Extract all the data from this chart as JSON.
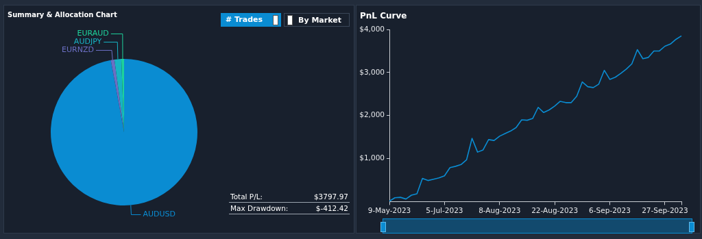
{
  "chart_data": [
    {
      "type": "pie",
      "title": "Summary & Allocation Chart",
      "categories": [
        "AUDUSD",
        "EURNZD",
        "AUDJPY",
        "EURAUD"
      ],
      "values": [
        97.1,
        0.8,
        1.5,
        0.6
      ],
      "colors": [
        "#0a8cd2",
        "#6b6fc4",
        "#17b4c4",
        "#1ed29c"
      ],
      "annotations": [
        "# Trades",
        "By Market",
        "Total P/L:",
        "$3797.97",
        "Max Drawdown:",
        "$-412.42"
      ]
    },
    {
      "type": "line",
      "title": "PnL Curve",
      "categories": [
        "9-May-2023",
        null,
        null,
        null,
        null,
        null,
        null,
        null,
        null,
        null,
        "5-Jul-2023",
        null,
        null,
        null,
        null,
        null,
        null,
        null,
        null,
        null,
        "8-Aug-2023",
        null,
        null,
        null,
        null,
        null,
        null,
        null,
        null,
        null,
        "22-Aug-2023",
        null,
        null,
        null,
        null,
        null,
        null,
        null,
        null,
        null,
        "6-Sep-2023",
        null,
        null,
        null,
        null,
        null,
        null,
        null,
        null,
        null,
        "27-Sep-2023",
        null,
        null,
        null
      ],
      "series": [
        {
          "color": "#0a8cd2",
          "values": [
            10,
            90,
            100,
            60,
            150,
            180,
            540,
            490,
            520,
            550,
            600,
            790,
            820,
            860,
            970,
            1470,
            1150,
            1200,
            1440,
            1420,
            1520,
            1580,
            1640,
            1720,
            1900,
            1890,
            1930,
            2190,
            2070,
            2130,
            2220,
            2330,
            2300,
            2300,
            2450,
            2780,
            2670,
            2650,
            2730,
            3050,
            2840,
            2890,
            2980,
            3080,
            3200,
            3530,
            3320,
            3350,
            3500,
            3500,
            3610,
            3660,
            3770,
            3850
          ]
        }
      ],
      "ylim": [
        0,
        4000
      ],
      "yticks": [
        {
          "value": 1000,
          "label": "$1,000"
        },
        {
          "value": 2000,
          "label": "$2,000"
        },
        {
          "value": 3000,
          "label": "$3,000"
        },
        {
          "value": 4000,
          "label": "$4,000"
        }
      ],
      "grid": false,
      "legend": false
    }
  ]
}
